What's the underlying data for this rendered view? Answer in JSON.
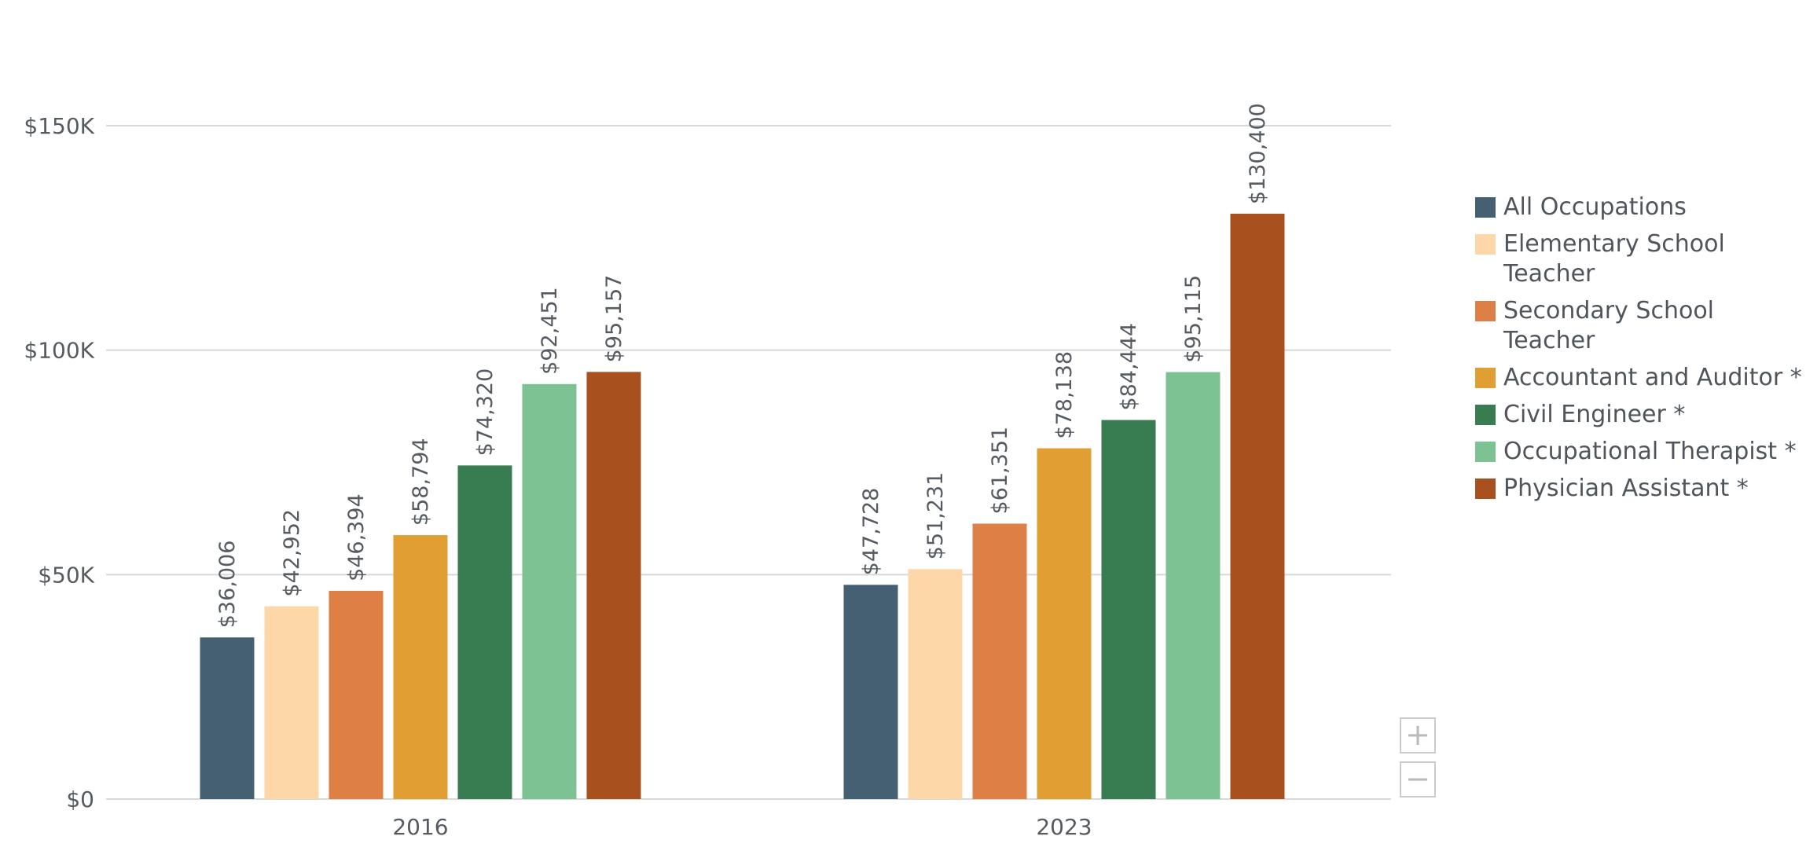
{
  "chart_data": {
    "type": "bar",
    "categories": [
      "2016",
      "2023"
    ],
    "ylim": [
      0,
      150000
    ],
    "yticks": [
      {
        "value": 0,
        "label": "$0"
      },
      {
        "value": 50000,
        "label": "$50K"
      },
      {
        "value": 100000,
        "label": "$100K"
      },
      {
        "value": 150000,
        "label": "$150K"
      }
    ],
    "grid": true,
    "legend_position": "right",
    "series": [
      {
        "name": "All Occupations",
        "color": "#456072",
        "values": [
          36006,
          47728
        ],
        "labels": [
          "$36,006",
          "$47,728"
        ]
      },
      {
        "name": "Elementary School Teacher",
        "color": "#fdd7a7",
        "values": [
          42952,
          51231
        ],
        "labels": [
          "$42,952",
          "$51,231"
        ]
      },
      {
        "name": "Secondary School Teacher",
        "color": "#de7f45",
        "values": [
          46394,
          61351
        ],
        "labels": [
          "$46,394",
          "$61,351"
        ]
      },
      {
        "name": "Accountant and Auditor *",
        "color": "#e09e33",
        "values": [
          58794,
          78138
        ],
        "labels": [
          "$58,794",
          "$78,138"
        ]
      },
      {
        "name": "Civil Engineer *",
        "color": "#387d52",
        "values": [
          74320,
          84444
        ],
        "labels": [
          "$74,320",
          "$84,444"
        ]
      },
      {
        "name": "Occupational Therapist *",
        "color": "#7dc292",
        "values": [
          92451,
          95115
        ],
        "labels": [
          "$92,451",
          "$95,115"
        ]
      },
      {
        "name": "Physician Assistant *",
        "color": "#a8511f",
        "values": [
          95157,
          130400
        ],
        "labels": [
          "$95,157",
          "$130,400"
        ]
      }
    ]
  },
  "controls": {
    "zoom_in": "+",
    "zoom_out": "−"
  }
}
